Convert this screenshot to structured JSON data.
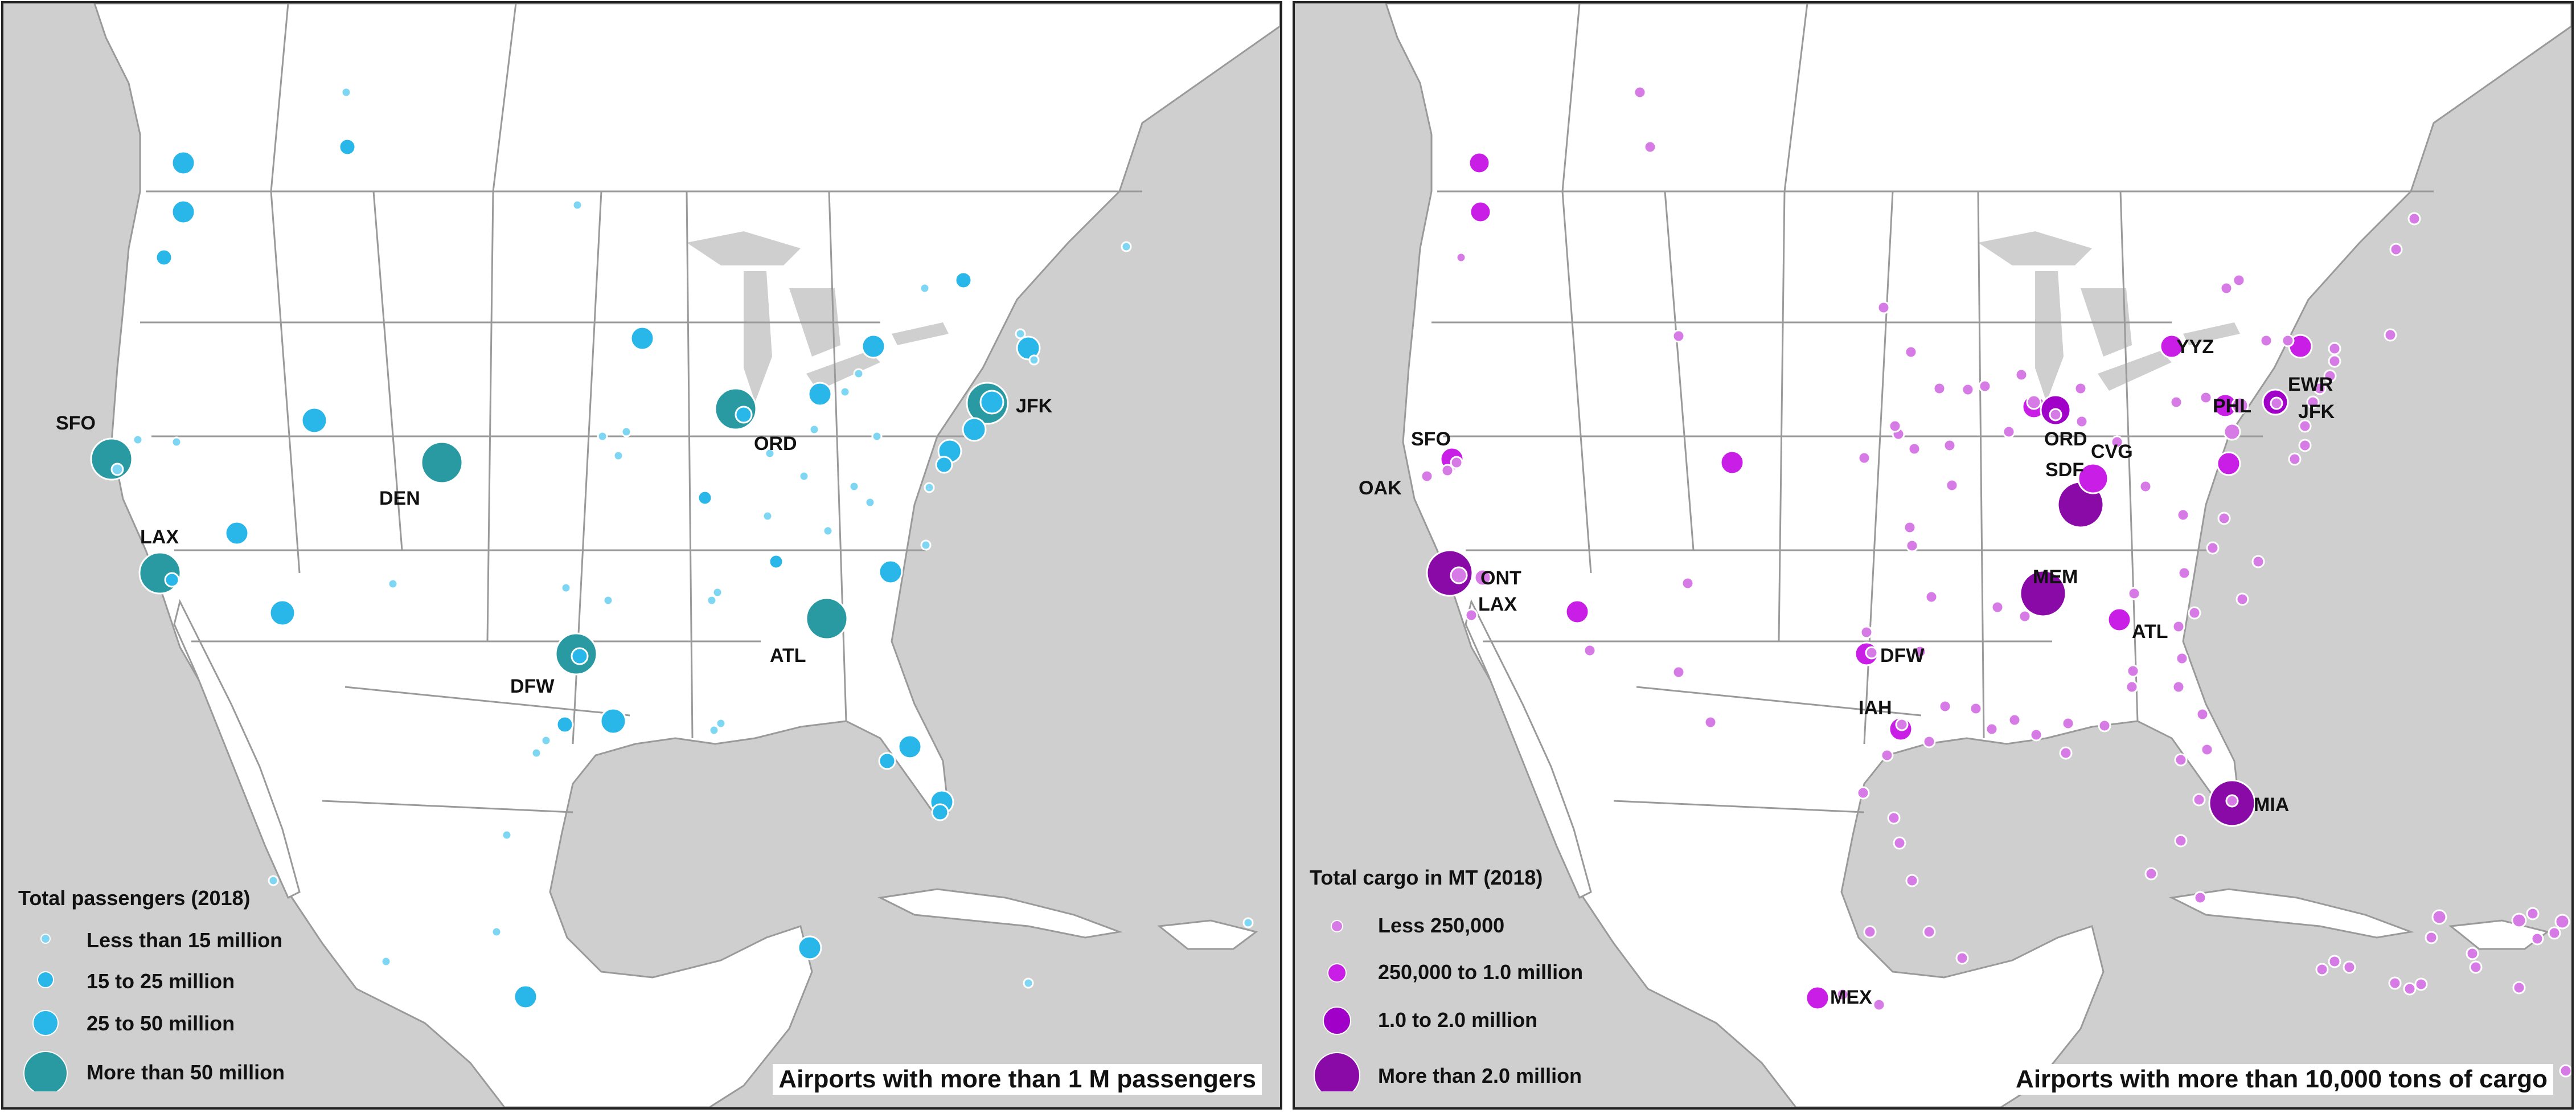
{
  "colors": {
    "sea": "#cfcfcf",
    "land": "#ffffff",
    "border": "#9a9a9a",
    "passengers_small": "#7fd6f2",
    "passengers_mid": "#29b6e8",
    "passengers_big": "#2a9aa2",
    "cargo_small": "#d67ae6",
    "cargo_mid": "#c81ee6",
    "cargo_big": "#8a0aa8"
  },
  "left": {
    "legend": {
      "title": "Total passengers (2018)",
      "items": [
        "Less than 15 million",
        "15 to 25 million",
        "25 to 50 million",
        "More than 50 million"
      ]
    },
    "caption": "Airports with more than 1 M passengers",
    "labels": [
      "SFO",
      "LAX",
      "DEN",
      "DFW",
      "ORD",
      "ATL",
      "JFK"
    ]
  },
  "right": {
    "legend": {
      "title": "Total cargo in MT (2018)",
      "items": [
        "Less 250,000",
        "250,000 to 1.0 million",
        "1.0 to 2.0 million",
        "More than 2.0 million"
      ]
    },
    "caption": "Airports with more than 10,000 tons of cargo",
    "labels": [
      "SFO",
      "OAK",
      "ONT",
      "LAX",
      "DFW",
      "IAH",
      "MEX",
      "ORD",
      "SDF",
      "CVG",
      "MEM",
      "ATL",
      "YYZ",
      "EWR",
      "PHL",
      "JFK",
      "MIA"
    ]
  }
}
